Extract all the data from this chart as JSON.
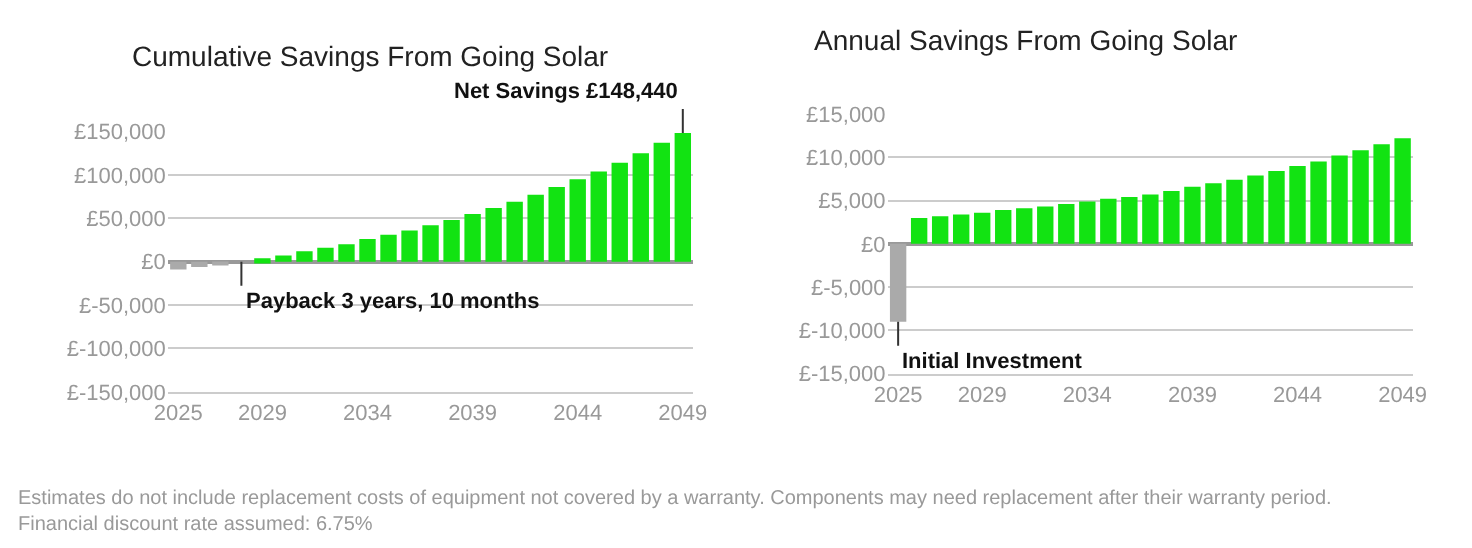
{
  "chart_data": [
    {
      "type": "bar",
      "title": "Cumulative Savings From Going Solar",
      "x": [
        2025,
        2026,
        2027,
        2028,
        2029,
        2030,
        2031,
        2032,
        2033,
        2034,
        2035,
        2036,
        2037,
        2038,
        2039,
        2040,
        2041,
        2042,
        2043,
        2044,
        2045,
        2046,
        2047,
        2048,
        2049
      ],
      "values": [
        -9000,
        -6000,
        -3000,
        0,
        4000,
        7000,
        12000,
        16000,
        20000,
        26000,
        31000,
        36000,
        42000,
        48000,
        55000,
        62000,
        69000,
        77000,
        86000,
        95000,
        104000,
        114000,
        125000,
        137000,
        148440
      ],
      "colors": [
        "#aaaaaa",
        "#aaaaaa",
        "#aaaaaa",
        "#aaaaaa",
        "#12e312",
        "#12e312",
        "#12e312",
        "#12e312",
        "#12e312",
        "#12e312",
        "#12e312",
        "#12e312",
        "#12e312",
        "#12e312",
        "#12e312",
        "#12e312",
        "#12e312",
        "#12e312",
        "#12e312",
        "#12e312",
        "#12e312",
        "#12e312",
        "#12e312",
        "#12e312",
        "#12e312"
      ],
      "xlim": [
        2024.5,
        2049.5
      ],
      "xticks": [
        2025,
        2029,
        2034,
        2039,
        2044,
        2049
      ],
      "ylim": [
        -150000,
        150000
      ],
      "yticks": [
        {
          "value": -150000,
          "label": "£-150,000"
        },
        {
          "value": -100000,
          "label": "£-100,000"
        },
        {
          "value": -50000,
          "label": "£-50,000"
        },
        {
          "value": 0,
          "label": "£0"
        },
        {
          "value": 50000,
          "label": "£50,000"
        },
        {
          "value": 100000,
          "label": "£100,000"
        },
        {
          "value": 150000,
          "label": "£150,000"
        }
      ],
      "grid": "y",
      "annotations": [
        {
          "text": "Net Savings £148,440",
          "x": 2049,
          "y": 148440
        },
        {
          "text": "Payback 3 years, 10 months",
          "x": 2028,
          "y": 0
        },
        "Estimates do not include replacement costs of equipment not covered by a warranty. Components may need replacement after their warranty period. Financial discount rate assumed: 6.75%"
      ]
    },
    {
      "type": "bar",
      "title": "Annual Savings From Going Solar",
      "x": [
        2025,
        2026,
        2027,
        2028,
        2029,
        2030,
        2031,
        2032,
        2033,
        2034,
        2035,
        2036,
        2037,
        2038,
        2039,
        2040,
        2041,
        2042,
        2043,
        2044,
        2045,
        2046,
        2047,
        2048,
        2049
      ],
      "values": [
        -9000,
        3000,
        3200,
        3400,
        3600,
        3900,
        4100,
        4300,
        4600,
        4900,
        5200,
        5400,
        5700,
        6100,
        6600,
        7000,
        7400,
        7900,
        8400,
        9000,
        9500,
        10200,
        10800,
        11500,
        12200
      ],
      "colors": [
        "#aaaaaa",
        "#12e312",
        "#12e312",
        "#12e312",
        "#12e312",
        "#12e312",
        "#12e312",
        "#12e312",
        "#12e312",
        "#12e312",
        "#12e312",
        "#12e312",
        "#12e312",
        "#12e312",
        "#12e312",
        "#12e312",
        "#12e312",
        "#12e312",
        "#12e312",
        "#12e312",
        "#12e312",
        "#12e312",
        "#12e312",
        "#12e312",
        "#12e312"
      ],
      "xlim": [
        2024.5,
        2049.5
      ],
      "xticks": [
        2025,
        2029,
        2034,
        2039,
        2044,
        2049
      ],
      "ylim": [
        -15000,
        15000
      ],
      "yticks": [
        {
          "value": -15000,
          "label": "£-15,000"
        },
        {
          "value": -10000,
          "label": "£-10,000"
        },
        {
          "value": -5000,
          "label": "£-5,000"
        },
        {
          "value": 0,
          "label": "£0"
        },
        {
          "value": 5000,
          "label": "£5,000"
        },
        {
          "value": 10000,
          "label": "£10,000"
        },
        {
          "value": 15000,
          "label": "£15,000"
        }
      ],
      "grid": "y",
      "annotations": [
        {
          "text": "Initial Investment",
          "x": 2025,
          "y": -9000
        }
      ]
    }
  ]
}
